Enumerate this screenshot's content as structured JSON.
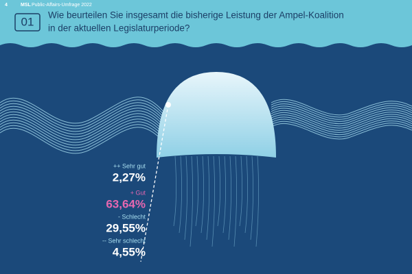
{
  "header": {
    "page": "4",
    "brand": "MSL",
    "publication": "Public-Affairs-Umfrage 2022"
  },
  "question": {
    "number": "01",
    "lines": [
      "Wie beurteilen Sie insgesamt die bisherige Leistung der Ampel-Koalition",
      "in der aktuellen Legislaturperiode?"
    ]
  },
  "answers": [
    {
      "label": "++ Sehr gut",
      "value": "2,27%"
    },
    {
      "label": "+ Gut",
      "value": "63,64%"
    },
    {
      "label": "- Schlecht",
      "value": "29,55%"
    },
    {
      "label": "-- Sehr schlecht",
      "value": "4,55%"
    }
  ]
}
